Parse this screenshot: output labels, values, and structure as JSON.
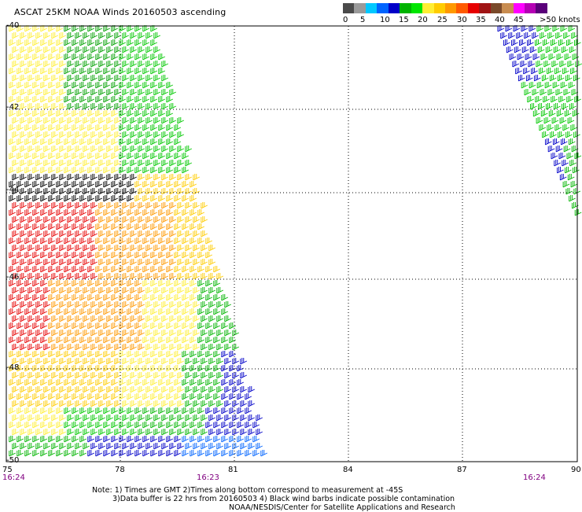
{
  "title": "ASCAT 25KM NOAA Winds 20160503 ascending",
  "legend": {
    "colors": [
      "#4a4a4a",
      "#9a9a9a",
      "#00c8ff",
      "#0064ff",
      "#0000c8",
      "#00b400",
      "#00e600",
      "#ffee33",
      "#ffcc00",
      "#ff9900",
      "#ff5a00",
      "#e60000",
      "#a01414",
      "#7a4a2a",
      "#c88c50",
      "#ff00ff",
      "#b400b4",
      "#5a007a"
    ],
    "ticks": [
      "0",
      "5",
      "10",
      "15",
      "20",
      "25",
      "30",
      "35",
      "40",
      "45",
      ">50 knots"
    ]
  },
  "lat_labels": [
    "-40",
    "-42",
    "-44",
    "-46",
    "-48",
    "-50"
  ],
  "lon_labels": [
    "75",
    "78",
    "81",
    "84",
    "87",
    "90"
  ],
  "times": {
    "left": "16:24",
    "middle": "16:23",
    "right": "16:24"
  },
  "notes": {
    "line1": "Note: 1) Times are GMT 2)Times along bottom correspond to measurement at -45S",
    "line2": "3)Data buffer is 22 hrs from 20160503 4) Black wind barbs indicate possible contamination",
    "line3": "NOAA/NESDIS/Center for Satellite Applications and Research"
  }
}
